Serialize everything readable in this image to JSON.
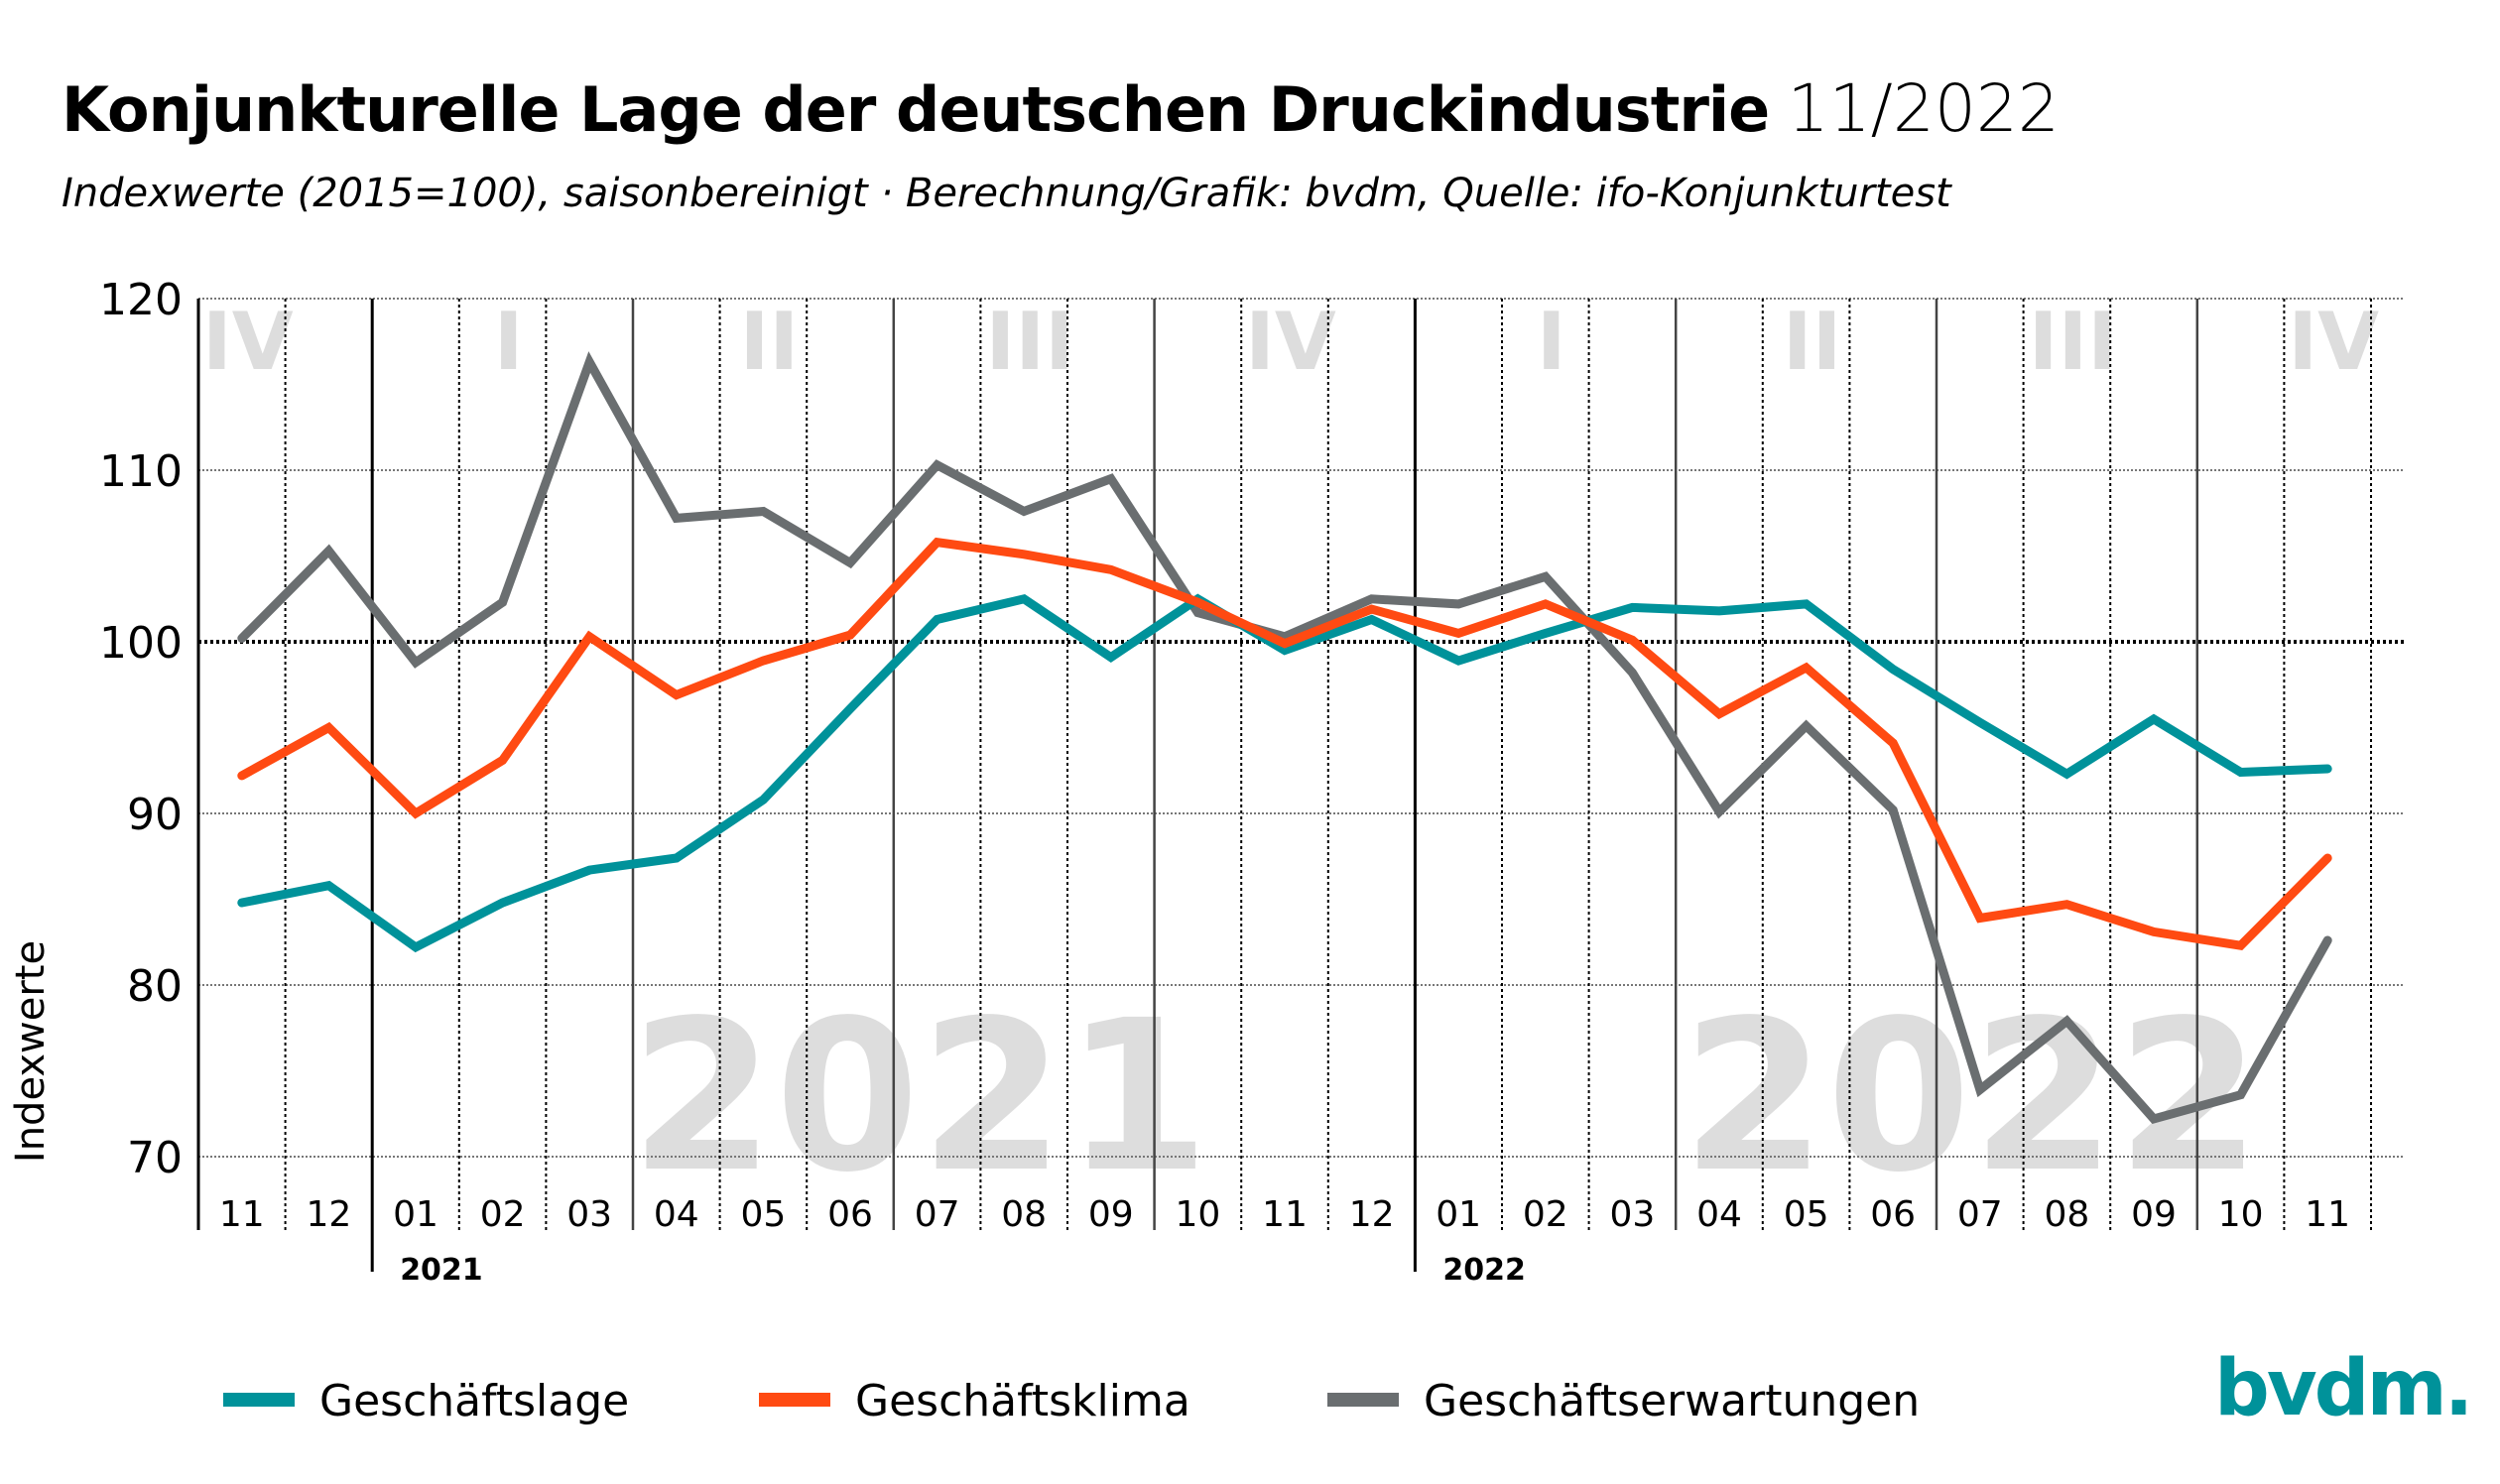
{
  "header": {
    "title": "Konjunkturelle Lage der deutschen Druckindustrie",
    "title_date": "11/2022",
    "subtitle": "Indexwerte (2015=100), saisonbereinigt · Berechnung/Grafik: bvdm, Quelle: ifo-Konjunkturtest"
  },
  "logo": {
    "text": "bvdm.",
    "color": "#00929a"
  },
  "chart_data": {
    "type": "line",
    "title": "Konjunkturelle Lage der deutschen Druckindustrie 11/2022",
    "subtitle": "Indexwerte (2015=100), saisonbereinigt · Berechnung/Grafik: bvdm, Quelle: ifo-Konjunkturtest",
    "xlabel": "",
    "ylabel": "Indexwerte",
    "ylim": [
      70,
      120
    ],
    "yticks": [
      120,
      110,
      100,
      90,
      80,
      70
    ],
    "reference_line": 100,
    "grid": true,
    "legend_position": "bottom",
    "x": [
      "11",
      "12",
      "01",
      "02",
      "03",
      "04",
      "05",
      "06",
      "07",
      "08",
      "09",
      "10",
      "11",
      "12",
      "01",
      "02",
      "03",
      "04",
      "05",
      "06",
      "07",
      "08",
      "09",
      "10",
      "11"
    ],
    "year_labels": [
      {
        "label": "2021",
        "start_index": 2
      },
      {
        "label": "2022",
        "start_index": 14
      }
    ],
    "quarter_labels": [
      {
        "label": "IV",
        "center_index": 0
      },
      {
        "label": "I",
        "center_index": 3
      },
      {
        "label": "II",
        "center_index": 6
      },
      {
        "label": "III",
        "center_index": 9
      },
      {
        "label": "IV",
        "center_index": 12
      },
      {
        "label": "I",
        "center_index": 15
      },
      {
        "label": "II",
        "center_index": 18
      },
      {
        "label": "III",
        "center_index": 21
      },
      {
        "label": "IV",
        "center_index": 24
      }
    ],
    "watermarks": [
      {
        "label": "2021",
        "center_index": 7.8
      },
      {
        "label": "2022",
        "center_index": 19.9
      }
    ],
    "series": [
      {
        "name": "Geschäftslage",
        "color": "#00929a",
        "values": [
          84.8,
          85.8,
          82.2,
          84.8,
          86.7,
          87.4,
          90.8,
          96.1,
          101.3,
          102.5,
          99.1,
          102.5,
          99.5,
          101.3,
          98.9,
          100.5,
          102.0,
          101.8,
          102.2,
          98.4,
          95.3,
          92.3,
          95.5,
          92.4,
          92.6
        ]
      },
      {
        "name": "Geschäftsklima",
        "color": "#ff4a12",
        "values": [
          92.2,
          95.0,
          90.0,
          93.1,
          100.3,
          96.9,
          98.9,
          100.4,
          105.8,
          105.1,
          104.2,
          102.3,
          99.9,
          101.9,
          100.5,
          102.2,
          100.1,
          95.8,
          98.5,
          94.1,
          83.9,
          84.7,
          83.1,
          82.3,
          87.4
        ]
      },
      {
        "name": "Geschäftserwartungen",
        "color": "#6a6e70",
        "values": [
          100.2,
          105.3,
          98.8,
          102.3,
          116.3,
          107.2,
          107.6,
          104.6,
          110.3,
          107.6,
          109.5,
          101.7,
          100.3,
          102.5,
          102.2,
          103.8,
          98.2,
          90.1,
          95.1,
          90.2,
          73.9,
          77.9,
          72.2,
          73.6,
          82.6
        ]
      }
    ]
  }
}
